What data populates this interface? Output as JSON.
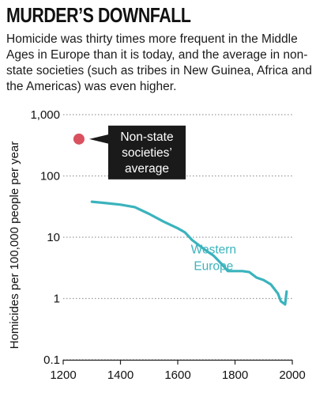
{
  "header": {
    "title": "MURDER’S DOWNFALL",
    "subtitle": "Homicide was thirty times more frequent in the Middle Ages in Europe than it is today, and the average in non-state societies (such as tribes in New Guinea, Africa and the Americas) was even higher."
  },
  "colors": {
    "line": "#3bb3bd",
    "point": "#d9515f",
    "callout_bg": "#1a1a1a",
    "grid": "#9a9a9a"
  },
  "chart_data": {
    "type": "line",
    "title": "MURDER’S DOWNFALL",
    "xlabel": "",
    "ylabel": "Homicides per 100,000 people per year",
    "yscale": "log",
    "xlim": [
      1200,
      2000
    ],
    "ylim": [
      0.1,
      1000
    ],
    "x_ticks": [
      1200,
      1400,
      1600,
      1800,
      2000
    ],
    "x_tick_labels": [
      "1200",
      "1400",
      "1600",
      "1800",
      "2000"
    ],
    "y_ticks": [
      0.1,
      1,
      10,
      100,
      1000
    ],
    "y_tick_labels": [
      "0.1",
      "1",
      "10",
      "100",
      "1,000"
    ],
    "grid": "horizontal dotted",
    "series": [
      {
        "name": "Western Europe",
        "label": [
          "Western",
          "Europe"
        ],
        "x": [
          1300,
          1350,
          1400,
          1450,
          1500,
          1550,
          1600,
          1625,
          1650,
          1700,
          1725,
          1750,
          1775,
          1800,
          1825,
          1850,
          1875,
          1900,
          1925,
          1950,
          1960,
          1975,
          1980
        ],
        "y": [
          38,
          36,
          34,
          31,
          24,
          18,
          14,
          12,
          9,
          6,
          5,
          3.8,
          2.8,
          2.8,
          2.8,
          2.7,
          2.2,
          2.0,
          1.7,
          1.2,
          0.9,
          0.8,
          1.3
        ]
      }
    ],
    "points": [
      {
        "name": "Non-state societies’ average",
        "label": [
          "Non-state",
          "societies’",
          "average"
        ],
        "x": 1255,
        "y": 400
      }
    ]
  }
}
